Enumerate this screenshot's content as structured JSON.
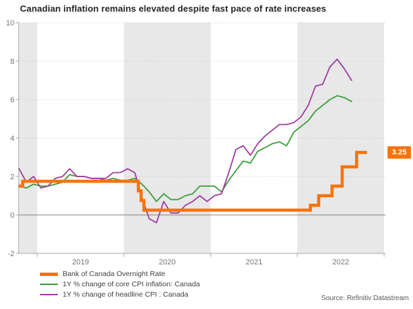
{
  "title": "Canadian inflation remains elevated despite fast pace of rate increases",
  "source": "Source: Refinitiv Datastream",
  "colors": {
    "orange": "#F8730A",
    "green": "#39A039",
    "purple": "#A03CA3",
    "band_gray": "#E8E8E8",
    "grid": "#CCCCCC",
    "zero_line": "#808080",
    "axis": "#A8A8A8",
    "tick_text": "#737373",
    "badge_text": "#FFFFFF"
  },
  "chart_data": {
    "type": "line",
    "title": "Canadian inflation remains elevated despite fast pace of rate increases",
    "source": "Source: Refinitiv Datastream",
    "y_axis": {
      "min": -2,
      "max": 10,
      "ticks": [
        10,
        8,
        6,
        4,
        2,
        0,
        -2
      ],
      "grid": "dotted",
      "zero_line": true
    },
    "x_axis": {
      "start_month": "2018-10",
      "end_month": "2022-09",
      "year_labels": [
        {
          "label": "2019",
          "center_m": 8.5
        },
        {
          "label": "2020",
          "center_m": 20.5
        },
        {
          "label": "2021",
          "center_m": 32.5
        },
        {
          "label": "2022",
          "center_m": 44.5
        }
      ],
      "year_tick_m": [
        2.5,
        14.5,
        26.5,
        38.5,
        50.5
      ],
      "shaded_bands_m": [
        {
          "from": -0.07,
          "to": 2.5
        },
        {
          "from": 14.5,
          "to": 26.5
        },
        {
          "from": 38.5,
          "to": 50.5
        }
      ]
    },
    "months": [
      "2018-10",
      "2018-11",
      "2018-12",
      "2019-01",
      "2019-02",
      "2019-03",
      "2019-04",
      "2019-05",
      "2019-06",
      "2019-07",
      "2019-08",
      "2019-09",
      "2019-10",
      "2019-11",
      "2019-12",
      "2020-01",
      "2020-02",
      "2020-03",
      "2020-04",
      "2020-05",
      "2020-06",
      "2020-07",
      "2020-08",
      "2020-09",
      "2020-10",
      "2020-11",
      "2020-12",
      "2021-01",
      "2021-02",
      "2021-03",
      "2021-04",
      "2021-05",
      "2021-06",
      "2021-07",
      "2021-08",
      "2021-09",
      "2021-10",
      "2021-11",
      "2021-12",
      "2022-01",
      "2022-02",
      "2022-03",
      "2022-04",
      "2022-05",
      "2022-06",
      "2022-07",
      "2022-08"
    ],
    "series": [
      {
        "name": "Bank of Canada Overnight Rate",
        "type": "step",
        "color_key": "orange",
        "width": 4.5,
        "steps": [
          {
            "m": -0.07,
            "v": 1.5
          },
          {
            "m": 0.5,
            "v": 1.75
          },
          {
            "m": 16.5,
            "v": 1.25
          },
          {
            "m": 16.88,
            "v": 0.75
          },
          {
            "m": 17.26,
            "v": 0.25
          },
          {
            "m": 40.3,
            "v": 0.5
          },
          {
            "m": 41.45,
            "v": 1.0
          },
          {
            "m": 43.3,
            "v": 1.5
          },
          {
            "m": 44.7,
            "v": 2.5
          },
          {
            "m": 46.7,
            "v": 3.25
          }
        ],
        "end_m": 48.15,
        "last_value_label": "3.25"
      },
      {
        "name": "1Y % change of core CPI inflation: Canada",
        "type": "line",
        "color_key": "green",
        "width": 1.8,
        "values": [
          1.5,
          1.4,
          1.6,
          1.5,
          1.5,
          1.6,
          1.7,
          2.1,
          2.0,
          2.0,
          1.9,
          1.9,
          1.8,
          1.9,
          1.8,
          1.8,
          1.9,
          1.6,
          1.2,
          0.7,
          1.1,
          0.8,
          0.8,
          1.0,
          1.1,
          1.5,
          1.5,
          1.5,
          1.2,
          1.8,
          2.3,
          2.8,
          2.7,
          3.3,
          3.5,
          3.7,
          3.8,
          3.6,
          4.3,
          4.6,
          4.9,
          5.4,
          5.7,
          6.0,
          6.2,
          6.1,
          5.9
        ]
      },
      {
        "name": "1Y % change of headline CPI : Canada",
        "type": "line",
        "color_key": "purple",
        "width": 1.8,
        "values": [
          2.4,
          1.7,
          2.0,
          1.4,
          1.5,
          1.9,
          2.0,
          2.4,
          2.0,
          2.0,
          1.9,
          1.9,
          1.9,
          2.2,
          2.2,
          2.4,
          2.2,
          0.9,
          -0.2,
          -0.4,
          0.7,
          0.1,
          0.1,
          0.5,
          0.7,
          1.0,
          0.7,
          1.0,
          1.1,
          2.2,
          3.4,
          3.6,
          3.1,
          3.7,
          4.1,
          4.4,
          4.7,
          4.7,
          4.8,
          5.1,
          5.7,
          6.7,
          6.8,
          7.7,
          8.1,
          7.6,
          7.0
        ]
      }
    ]
  }
}
